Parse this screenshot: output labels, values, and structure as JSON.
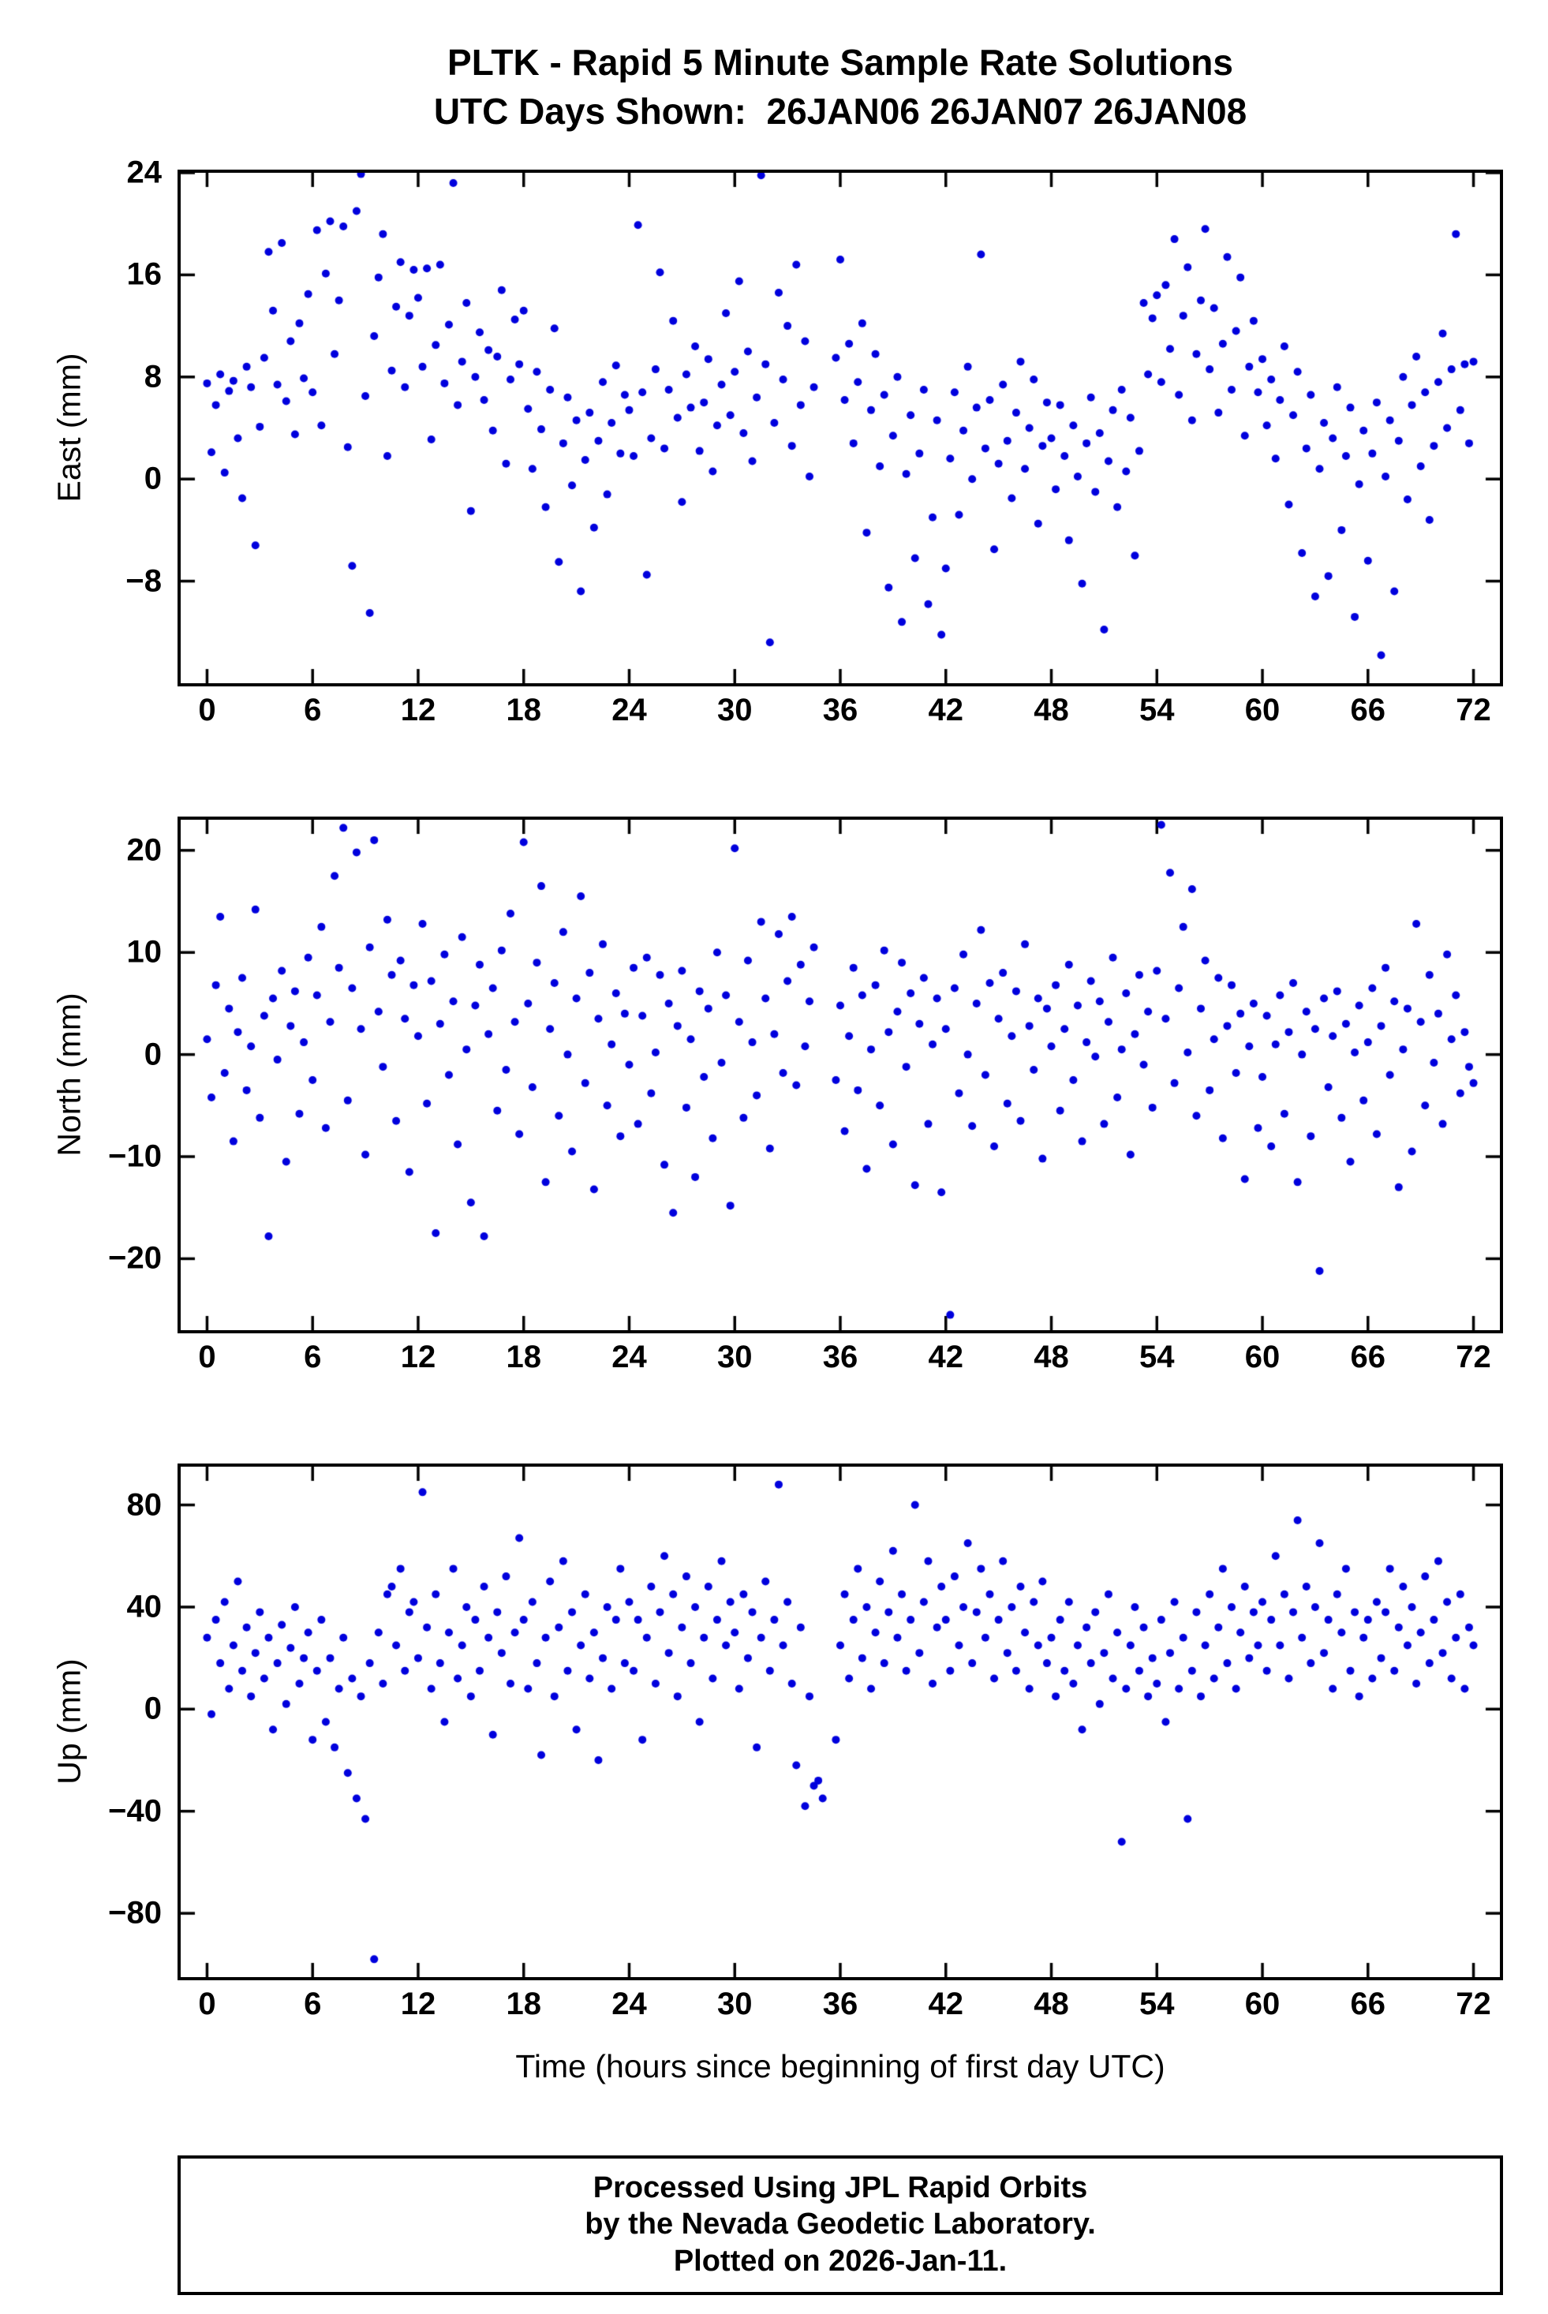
{
  "header": {
    "title_line1": "PLTK - Rapid 5 Minute Sample Rate Solutions",
    "title_line2": "UTC Days Shown:  26JAN06 26JAN07 26JAN08"
  },
  "footer": {
    "line1": "Processed Using JPL Rapid Orbits",
    "line2": "by the Nevada Geodetic Laboratory.",
    "line3": "Plotted on 2026-Jan-11."
  },
  "chart_data": {
    "type": "scatter",
    "marker_color": "#0000dd",
    "marker_radius_px": 5,
    "axis_color": "#000000",
    "grid": false,
    "legend": false,
    "x_start": 0,
    "x_step": 0.25,
    "xlim": [
      -1.5,
      73.5
    ],
    "xticks": [
      0,
      6,
      12,
      18,
      24,
      30,
      36,
      42,
      48,
      54,
      60,
      66,
      72
    ],
    "xlabel": "Time (hours since beginning of first day UTC)",
    "panels": [
      {
        "name": "East",
        "ylabel": "East (mm)",
        "ylim": [
          -16,
          24
        ],
        "yticks": [
          -8,
          0,
          8,
          16,
          24
        ],
        "values": [
          7.5,
          2.1,
          5.8,
          8.2,
          0.5,
          6.9,
          7.7,
          3.2,
          -1.5,
          8.8,
          7.2,
          -5.2,
          4.1,
          9.5,
          17.8,
          13.2,
          7.4,
          18.5,
          6.1,
          10.8,
          3.5,
          12.2,
          7.9,
          14.5,
          6.8,
          19.5,
          4.2,
          16.1,
          20.2,
          9.8,
          14.0,
          19.8,
          2.5,
          -6.8,
          21.0,
          23.9,
          6.5,
          -10.5,
          11.2,
          15.8,
          19.2,
          1.8,
          8.5,
          13.5,
          17.0,
          7.2,
          12.8,
          16.4,
          14.2,
          8.8,
          16.5,
          3.1,
          10.5,
          16.8,
          7.5,
          12.1,
          23.2,
          5.8,
          9.2,
          13.8,
          -2.5,
          8.0,
          11.5,
          6.2,
          10.1,
          3.8,
          9.6,
          14.8,
          1.2,
          7.8,
          12.5,
          9.0,
          13.2,
          5.5,
          0.8,
          8.4,
          3.9,
          -2.2,
          7.0,
          11.8,
          -6.5,
          2.8,
          6.4,
          -0.5,
          4.6,
          -8.8,
          1.5,
          5.2,
          -3.8,
          3.0,
          7.6,
          -1.2,
          4.4,
          8.9,
          2.0,
          6.6,
          5.4,
          1.8,
          19.9,
          6.8,
          -7.5,
          3.2,
          8.6,
          16.2,
          2.4,
          7.0,
          12.4,
          4.8,
          -1.8,
          8.2,
          5.6,
          10.4,
          2.2,
          6.0,
          9.4,
          0.6,
          4.2,
          7.4,
          13.0,
          5.0,
          8.4,
          15.5,
          3.6,
          10.0,
          1.4,
          6.4,
          23.8,
          9.0,
          -12.8,
          4.4,
          14.6,
          7.8,
          12.0,
          2.6,
          16.8,
          5.8,
          10.8,
          0.2,
          7.2,
          null,
          null,
          null,
          null,
          9.5,
          17.2,
          6.2,
          10.6,
          2.8,
          7.6,
          12.2,
          -4.2,
          5.4,
          9.8,
          1.0,
          6.6,
          -8.5,
          3.4,
          8.0,
          -11.2,
          0.4,
          5.0,
          -6.2,
          2.0,
          7.0,
          -9.8,
          -3.0,
          4.6,
          -12.2,
          -7.0,
          1.6,
          6.8,
          -2.8,
          3.8,
          8.8,
          0.0,
          5.6,
          17.6,
          2.4,
          6.2,
          -5.5,
          1.2,
          7.4,
          3.0,
          -1.5,
          5.2,
          9.2,
          0.8,
          4.0,
          7.8,
          -3.5,
          2.6,
          6.0,
          3.2,
          -0.8,
          5.8,
          1.8,
          -4.8,
          4.2,
          0.2,
          -8.2,
          2.8,
          6.4,
          -1.0,
          3.6,
          -11.8,
          1.4,
          5.4,
          -2.2,
          7.0,
          0.6,
          4.8,
          -6.0,
          2.2,
          13.8,
          8.2,
          12.6,
          14.4,
          7.6,
          15.2,
          10.2,
          18.8,
          6.6,
          12.8,
          16.6,
          4.6,
          9.8,
          14.0,
          19.6,
          8.6,
          13.4,
          5.2,
          10.6,
          17.4,
          7.0,
          11.6,
          15.8,
          3.4,
          8.8,
          12.4,
          6.8,
          9.4,
          4.2,
          7.8,
          1.6,
          6.2,
          10.4,
          -2.0,
          5.0,
          8.4,
          -5.8,
          2.4,
          6.6,
          -9.2,
          0.8,
          4.4,
          -7.6,
          3.2,
          7.2,
          -4.0,
          1.8,
          5.6,
          -10.8,
          -0.4,
          3.8,
          -6.4,
          2.0,
          6.0,
          -13.8,
          0.2,
          4.6,
          -8.8,
          3.0,
          8.0,
          -1.6,
          5.8,
          9.6,
          1.0,
          6.8,
          -3.2,
          2.6,
          7.6,
          11.4,
          4.0,
          8.6,
          19.2,
          5.4,
          9.0,
          2.8,
          9.2
        ]
      },
      {
        "name": "North",
        "ylabel": "North (mm)",
        "ylim": [
          -27,
          23
        ],
        "yticks": [
          -20,
          -10,
          0,
          10,
          20
        ],
        "values": [
          1.5,
          -4.2,
          6.8,
          13.5,
          -1.8,
          4.5,
          -8.5,
          2.2,
          7.5,
          -3.5,
          0.8,
          14.2,
          -6.2,
          3.8,
          -17.8,
          5.5,
          -0.5,
          8.2,
          -10.5,
          2.8,
          6.2,
          -5.8,
          1.2,
          9.5,
          -2.5,
          5.8,
          12.5,
          -7.2,
          3.2,
          17.5,
          8.5,
          22.2,
          -4.5,
          6.5,
          19.8,
          2.5,
          -9.8,
          10.5,
          21.0,
          4.2,
          -1.2,
          13.2,
          7.8,
          -6.5,
          9.2,
          3.5,
          -11.5,
          6.8,
          1.8,
          12.8,
          -4.8,
          7.2,
          -17.5,
          3.0,
          9.8,
          -2.0,
          5.2,
          -8.8,
          11.5,
          0.5,
          -14.5,
          4.8,
          8.8,
          -17.8,
          2.0,
          6.5,
          -5.5,
          10.2,
          -1.5,
          13.8,
          3.2,
          -7.8,
          20.8,
          5.0,
          -3.2,
          9.0,
          16.5,
          -12.5,
          2.5,
          7.0,
          -6.0,
          12.0,
          0.0,
          -9.5,
          5.5,
          15.5,
          -2.8,
          8.0,
          -13.2,
          3.5,
          10.8,
          -5.0,
          1.0,
          6.0,
          -8.0,
          4.0,
          -1.0,
          8.5,
          -6.8,
          3.8,
          9.5,
          -3.8,
          0.2,
          7.8,
          -10.8,
          5.0,
          -15.5,
          2.8,
          8.2,
          -5.2,
          1.5,
          -12.0,
          6.2,
          -2.2,
          4.5,
          -8.2,
          10.0,
          -0.8,
          5.8,
          -14.8,
          20.2,
          3.2,
          -6.2,
          9.2,
          1.2,
          -4.0,
          13.0,
          5.5,
          -9.2,
          2.0,
          11.8,
          -1.8,
          7.2,
          13.5,
          -3.0,
          8.8,
          0.8,
          5.2,
          10.5,
          null,
          null,
          null,
          null,
          -2.5,
          4.8,
          -7.5,
          1.8,
          8.5,
          -3.5,
          5.8,
          -11.2,
          0.5,
          6.8,
          -5.0,
          10.2,
          2.2,
          -8.8,
          4.2,
          9.0,
          -1.2,
          6.0,
          -12.8,
          3.0,
          7.5,
          -6.8,
          1.0,
          5.5,
          -13.5,
          2.5,
          -25.5,
          6.5,
          -3.8,
          9.8,
          0.0,
          -7.0,
          5.0,
          12.2,
          -2.0,
          7.0,
          -9.0,
          3.5,
          8.0,
          -4.8,
          1.8,
          6.2,
          -6.5,
          10.8,
          2.8,
          -1.5,
          5.5,
          -10.2,
          4.5,
          0.8,
          6.8,
          -5.5,
          2.5,
          8.8,
          -2.5,
          4.8,
          -8.5,
          1.2,
          7.2,
          -0.2,
          5.2,
          -6.8,
          3.2,
          9.5,
          -4.2,
          0.5,
          6.0,
          -9.8,
          2.0,
          7.8,
          -1.0,
          4.2,
          -5.2,
          8.2,
          22.5,
          3.5,
          17.8,
          -2.8,
          6.5,
          12.5,
          0.2,
          16.2,
          -6.0,
          4.5,
          9.2,
          -3.5,
          1.5,
          7.5,
          -8.2,
          2.8,
          6.8,
          -1.8,
          4.0,
          -12.2,
          0.8,
          5.0,
          -7.2,
          -2.2,
          3.8,
          -9.0,
          1.0,
          5.8,
          -5.8,
          2.2,
          7.0,
          -12.5,
          0.0,
          4.2,
          -8.0,
          2.5,
          -21.2,
          5.5,
          -3.2,
          1.8,
          6.2,
          -6.2,
          3.0,
          -10.5,
          0.2,
          4.8,
          -4.5,
          1.2,
          6.5,
          -7.8,
          2.8,
          8.5,
          -2.0,
          5.2,
          -13.0,
          0.5,
          4.5,
          -9.5,
          12.8,
          3.2,
          -5.0,
          7.8,
          -0.8,
          4.0,
          -6.8,
          9.8,
          1.5,
          5.8,
          -3.8,
          2.2,
          -1.2,
          -2.8
        ]
      },
      {
        "name": "Up",
        "ylabel": "Up (mm)",
        "ylim": [
          -105,
          95
        ],
        "yticks": [
          -80,
          -40,
          0,
          40,
          80
        ],
        "values": [
          28,
          -2,
          35,
          18,
          42,
          8,
          25,
          50,
          15,
          32,
          5,
          22,
          38,
          12,
          28,
          -8,
          18,
          33,
          2,
          24,
          40,
          10,
          20,
          30,
          -12,
          15,
          35,
          -5,
          20,
          -15,
          8,
          28,
          -25,
          12,
          -35,
          5,
          -43,
          18,
          -98,
          30,
          10,
          45,
          48,
          25,
          55,
          15,
          38,
          42,
          20,
          85,
          32,
          8,
          45,
          18,
          -5,
          30,
          55,
          12,
          25,
          40,
          5,
          35,
          15,
          48,
          28,
          -10,
          38,
          22,
          52,
          10,
          30,
          67,
          35,
          8,
          42,
          18,
          -18,
          28,
          50,
          5,
          32,
          58,
          15,
          38,
          -8,
          25,
          45,
          12,
          30,
          -20,
          20,
          40,
          8,
          35,
          55,
          18,
          42,
          15,
          35,
          -12,
          28,
          48,
          10,
          38,
          60,
          22,
          45,
          5,
          32,
          52,
          18,
          40,
          -5,
          28,
          48,
          12,
          35,
          58,
          25,
          42,
          30,
          8,
          45,
          20,
          38,
          -15,
          28,
          50,
          15,
          35,
          88,
          25,
          42,
          10,
          -22,
          32,
          -38,
          5,
          -30,
          -28,
          -35,
          null,
          null,
          -12,
          25,
          45,
          12,
          35,
          55,
          20,
          40,
          8,
          30,
          50,
          18,
          38,
          62,
          28,
          45,
          15,
          35,
          80,
          22,
          42,
          58,
          10,
          32,
          48,
          35,
          15,
          52,
          25,
          40,
          65,
          18,
          38,
          55,
          28,
          45,
          12,
          35,
          58,
          22,
          40,
          15,
          48,
          30,
          8,
          42,
          25,
          50,
          18,
          28,
          5,
          35,
          15,
          42,
          10,
          25,
          -8,
          32,
          18,
          38,
          2,
          22,
          45,
          12,
          30,
          -52,
          8,
          25,
          40,
          15,
          32,
          5,
          20,
          10,
          35,
          -5,
          22,
          42,
          8,
          28,
          -43,
          15,
          38,
          5,
          25,
          45,
          12,
          32,
          55,
          18,
          40,
          8,
          30,
          48,
          20,
          38,
          25,
          42,
          15,
          35,
          60,
          25,
          45,
          12,
          38,
          74,
          28,
          48,
          18,
          40,
          65,
          22,
          35,
          8,
          45,
          30,
          55,
          15,
          38,
          5,
          28,
          35,
          12,
          42,
          20,
          38,
          55,
          15,
          32,
          48,
          25,
          40,
          10,
          30,
          52,
          18,
          35,
          58,
          22,
          42,
          12,
          28,
          45,
          8,
          32,
          25
        ]
      }
    ]
  }
}
